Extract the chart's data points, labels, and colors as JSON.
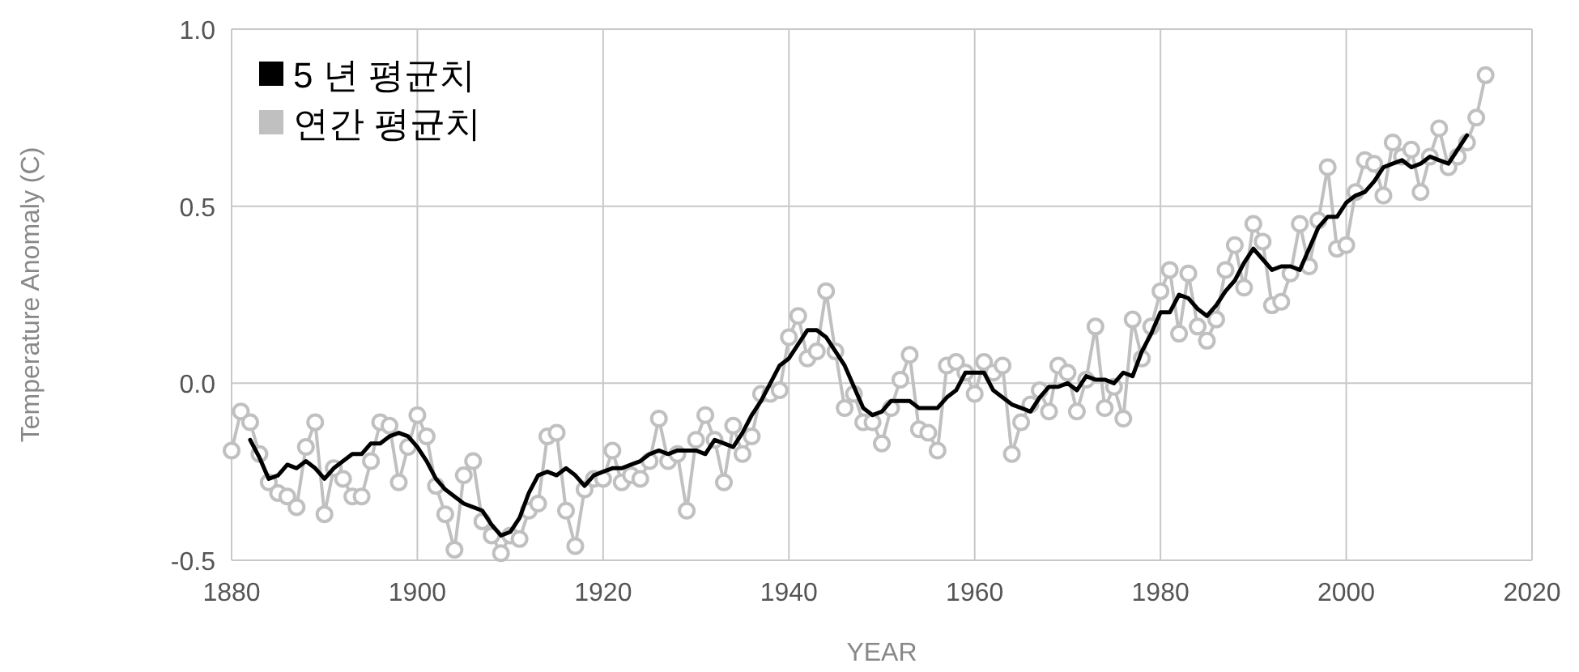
{
  "chart_data": {
    "type": "line",
    "xlabel": "YEAR",
    "ylabel": "Temperature Anomaly (C)",
    "xlim": [
      1880,
      2020
    ],
    "xticks": [
      1880,
      1900,
      1920,
      1940,
      1960,
      1980,
      2000,
      2020
    ],
    "ylim": [
      -0.5,
      1.0
    ],
    "yticks": [
      {
        "value": -0.5,
        "label": "-0.5"
      },
      {
        "value": 0,
        "label": "0.0"
      },
      {
        "value": 0.5,
        "label": "0.5"
      },
      {
        "value": 1,
        "label": "1.0"
      }
    ],
    "grid": true,
    "legend": "top left",
    "series": [
      {
        "name": "5 년 평균치",
        "color": "#000000",
        "marker": "none",
        "x": [
          1882,
          1883,
          1884,
          1885,
          1886,
          1887,
          1888,
          1889,
          1890,
          1891,
          1892,
          1893,
          1894,
          1895,
          1896,
          1897,
          1898,
          1899,
          1900,
          1901,
          1902,
          1903,
          1904,
          1905,
          1906,
          1907,
          1908,
          1909,
          1910,
          1911,
          1912,
          1913,
          1914,
          1915,
          1916,
          1917,
          1918,
          1919,
          1920,
          1921,
          1922,
          1923,
          1924,
          1925,
          1926,
          1927,
          1928,
          1929,
          1930,
          1931,
          1932,
          1933,
          1934,
          1935,
          1936,
          1937,
          1938,
          1939,
          1940,
          1941,
          1942,
          1943,
          1944,
          1945,
          1946,
          1947,
          1948,
          1949,
          1950,
          1951,
          1952,
          1953,
          1954,
          1955,
          1956,
          1957,
          1958,
          1959,
          1960,
          1961,
          1962,
          1963,
          1964,
          1965,
          1966,
          1967,
          1968,
          1969,
          1970,
          1971,
          1972,
          1973,
          1974,
          1975,
          1976,
          1977,
          1978,
          1979,
          1980,
          1981,
          1982,
          1983,
          1984,
          1985,
          1986,
          1987,
          1988,
          1989,
          1990,
          1991,
          1992,
          1993,
          1994,
          1995,
          1996,
          1997,
          1998,
          1999,
          2000,
          2001,
          2002,
          2003,
          2004,
          2005,
          2006,
          2007,
          2008,
          2009,
          2010,
          2011,
          2012,
          2013
        ],
        "values": [
          -0.16,
          -0.21,
          -0.27,
          -0.26,
          -0.23,
          -0.24,
          -0.22,
          -0.24,
          -0.27,
          -0.24,
          -0.22,
          -0.2,
          -0.2,
          -0.17,
          -0.17,
          -0.15,
          -0.14,
          -0.15,
          -0.18,
          -0.22,
          -0.27,
          -0.3,
          -0.32,
          -0.34,
          -0.35,
          -0.36,
          -0.4,
          -0.43,
          -0.42,
          -0.38,
          -0.31,
          -0.26,
          -0.25,
          -0.26,
          -0.24,
          -0.26,
          -0.29,
          -0.26,
          -0.25,
          -0.24,
          -0.24,
          -0.23,
          -0.22,
          -0.2,
          -0.19,
          -0.2,
          -0.19,
          -0.19,
          -0.19,
          -0.2,
          -0.16,
          -0.17,
          -0.18,
          -0.14,
          -0.09,
          -0.05,
          0.0,
          0.05,
          0.07,
          0.11,
          0.15,
          0.15,
          0.13,
          0.09,
          0.05,
          -0.01,
          -0.07,
          -0.09,
          -0.08,
          -0.05,
          -0.05,
          -0.05,
          -0.07,
          -0.07,
          -0.07,
          -0.04,
          -0.02,
          0.03,
          0.03,
          0.03,
          -0.02,
          -0.04,
          -0.06,
          -0.07,
          -0.08,
          -0.04,
          -0.01,
          -0.01,
          0.0,
          -0.02,
          0.02,
          0.01,
          0.01,
          0.0,
          0.03,
          0.02,
          0.09,
          0.14,
          0.2,
          0.2,
          0.25,
          0.24,
          0.21,
          0.19,
          0.22,
          0.26,
          0.29,
          0.34,
          0.38,
          0.35,
          0.32,
          0.33,
          0.33,
          0.32,
          0.38,
          0.44,
          0.47,
          0.47,
          0.51,
          0.53,
          0.54,
          0.57,
          0.61,
          0.62,
          0.63,
          0.61,
          0.62,
          0.64,
          0.63,
          0.62,
          0.66,
          0.7
        ]
      },
      {
        "name": "연간 평균치",
        "color": "#c0c0c0",
        "marker": "circle",
        "x": [
          1880,
          1881,
          1882,
          1883,
          1884,
          1885,
          1886,
          1887,
          1888,
          1889,
          1890,
          1891,
          1892,
          1893,
          1894,
          1895,
          1896,
          1897,
          1898,
          1899,
          1900,
          1901,
          1902,
          1903,
          1904,
          1905,
          1906,
          1907,
          1908,
          1909,
          1910,
          1911,
          1912,
          1913,
          1914,
          1915,
          1916,
          1917,
          1918,
          1919,
          1920,
          1921,
          1922,
          1923,
          1924,
          1925,
          1926,
          1927,
          1928,
          1929,
          1930,
          1931,
          1932,
          1933,
          1934,
          1935,
          1936,
          1937,
          1938,
          1939,
          1940,
          1941,
          1942,
          1943,
          1944,
          1945,
          1946,
          1947,
          1948,
          1949,
          1950,
          1951,
          1952,
          1953,
          1954,
          1955,
          1956,
          1957,
          1958,
          1959,
          1960,
          1961,
          1962,
          1963,
          1964,
          1965,
          1966,
          1967,
          1968,
          1969,
          1970,
          1971,
          1972,
          1973,
          1974,
          1975,
          1976,
          1977,
          1978,
          1979,
          1980,
          1981,
          1982,
          1983,
          1984,
          1985,
          1986,
          1987,
          1988,
          1989,
          1990,
          1991,
          1992,
          1993,
          1994,
          1995,
          1996,
          1997,
          1998,
          1999,
          2000,
          2001,
          2002,
          2003,
          2004,
          2005,
          2006,
          2007,
          2008,
          2009,
          2010,
          2011,
          2012,
          2013,
          2014,
          2015
        ],
        "values": [
          -0.19,
          -0.08,
          -0.11,
          -0.2,
          -0.28,
          -0.31,
          -0.32,
          -0.35,
          -0.18,
          -0.11,
          -0.37,
          -0.24,
          -0.27,
          -0.32,
          -0.32,
          -0.22,
          -0.11,
          -0.12,
          -0.28,
          -0.18,
          -0.09,
          -0.15,
          -0.29,
          -0.37,
          -0.47,
          -0.26,
          -0.22,
          -0.39,
          -0.43,
          -0.48,
          -0.43,
          -0.44,
          -0.36,
          -0.34,
          -0.15,
          -0.14,
          -0.36,
          -0.46,
          -0.3,
          -0.27,
          -0.27,
          -0.19,
          -0.28,
          -0.26,
          -0.27,
          -0.22,
          -0.1,
          -0.22,
          -0.2,
          -0.36,
          -0.16,
          -0.09,
          -0.16,
          -0.28,
          -0.12,
          -0.2,
          -0.15,
          -0.03,
          -0.03,
          -0.02,
          0.13,
          0.19,
          0.07,
          0.09,
          0.26,
          0.09,
          -0.07,
          -0.03,
          -0.11,
          -0.11,
          -0.17,
          -0.07,
          0.01,
          0.08,
          -0.13,
          -0.14,
          -0.19,
          0.05,
          0.06,
          0.03,
          -0.03,
          0.06,
          0.03,
          0.05,
          -0.2,
          -0.11,
          -0.06,
          -0.02,
          -0.08,
          0.05,
          0.03,
          -0.08,
          0.01,
          0.16,
          -0.07,
          -0.01,
          -0.1,
          0.18,
          0.07,
          0.16,
          0.26,
          0.32,
          0.14,
          0.31,
          0.16,
          0.12,
          0.18,
          0.32,
          0.39,
          0.27,
          0.45,
          0.4,
          0.22,
          0.23,
          0.31,
          0.45,
          0.33,
          0.46,
          0.61,
          0.38,
          0.39,
          0.54,
          0.63,
          0.62,
          0.53,
          0.68,
          0.64,
          0.66,
          0.54,
          0.64,
          0.72,
          0.61,
          0.64,
          0.68,
          0.75,
          0.87
        ]
      }
    ]
  }
}
